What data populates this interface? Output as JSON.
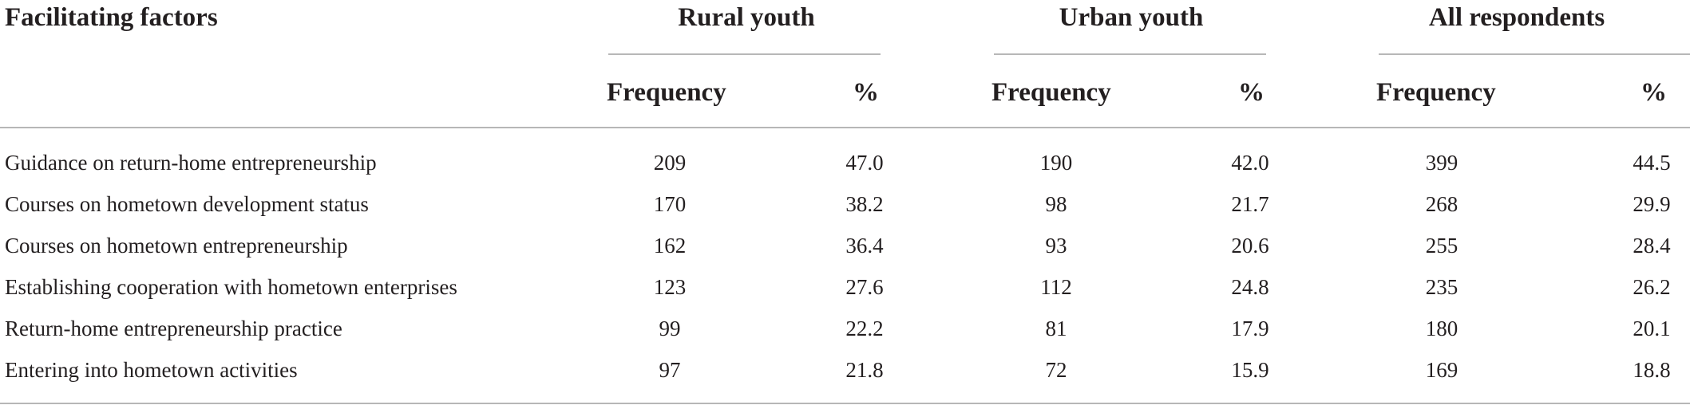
{
  "table": {
    "stub_header": "Facilitating factors",
    "groups": [
      {
        "label": "Rural youth"
      },
      {
        "label": "Urban youth"
      },
      {
        "label": "All respondents"
      }
    ],
    "subheaders": {
      "frequency": "Frequency",
      "percent": "%"
    },
    "rows": [
      {
        "factor": "Guidance on return-home entrepreneurship",
        "values": [
          "209",
          "47.0",
          "190",
          "42.0",
          "399",
          "44.5"
        ]
      },
      {
        "factor": "Courses on hometown development status",
        "values": [
          "170",
          "38.2",
          "98",
          "21.7",
          "268",
          "29.9"
        ]
      },
      {
        "factor": "Courses on hometown entrepreneurship",
        "values": [
          "162",
          "36.4",
          "93",
          "20.6",
          "255",
          "28.4"
        ]
      },
      {
        "factor": "Establishing cooperation with hometown enterprises",
        "values": [
          "123",
          "27.6",
          "112",
          "24.8",
          "235",
          "26.2"
        ]
      },
      {
        "factor": "Return-home entrepreneurship practice",
        "values": [
          "99",
          "22.2",
          "81",
          "17.9",
          "180",
          "20.1"
        ]
      },
      {
        "factor": "Entering into hometown activities",
        "values": [
          "97",
          "21.8",
          "72",
          "15.9",
          "169",
          "18.8"
        ]
      }
    ]
  }
}
